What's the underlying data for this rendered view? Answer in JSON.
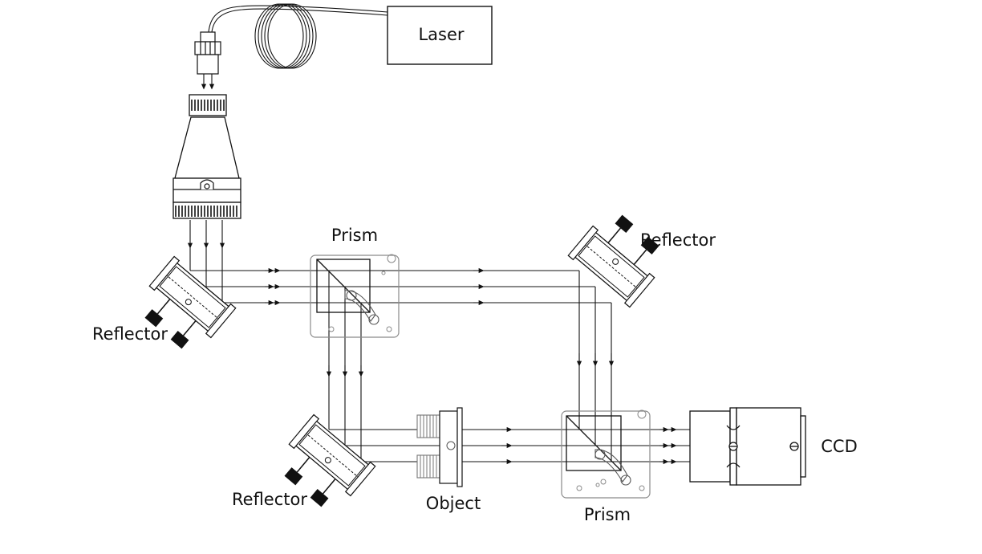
{
  "labels": {
    "laser": "Laser",
    "prism_top": "Prism",
    "reflector_top_right": "Reflector",
    "reflector_left": "Reflector",
    "reflector_bottom": "Reflector",
    "object": "Object",
    "prism_bottom": "Prism",
    "ccd": "CCD"
  },
  "colors": {
    "ink": "#111111",
    "faint": "#8a8a8a"
  }
}
